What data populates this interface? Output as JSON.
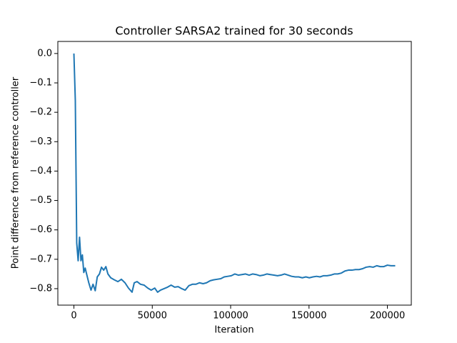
{
  "chart_data": {
    "type": "line",
    "title": "Controller SARSA2 trained for 30 seconds",
    "x_label": "Iteration",
    "y_label": "Point difference from reference controller",
    "color": "#1f77b4",
    "x": [
      0,
      900,
      1800,
      2700,
      3600,
      4500,
      5400,
      6300,
      7200,
      8100,
      9500,
      10900,
      12200,
      13600,
      14900,
      16300,
      17600,
      19000,
      20400,
      21700,
      23500,
      25800,
      28100,
      30300,
      32600,
      34800,
      37100,
      38500,
      40300,
      42500,
      44800,
      47100,
      49300,
      51600,
      53400,
      55200,
      57500,
      59700,
      62000,
      64300,
      66500,
      68800,
      71000,
      73300,
      75600,
      77800,
      80100,
      82400,
      84600,
      86900,
      89100,
      91400,
      93700,
      95900,
      98200,
      100400,
      102700,
      105000,
      107200,
      109500,
      111800,
      114000,
      116300,
      118600,
      120800,
      123100,
      125300,
      127600,
      129900,
      132100,
      134400,
      136700,
      138900,
      141200,
      143400,
      145700,
      148000,
      150200,
      152500,
      154800,
      157000,
      159300,
      161500,
      163800,
      166100,
      168300,
      170600,
      172900,
      175100,
      177400,
      179600,
      181900,
      184200,
      186400,
      188700,
      190900,
      193200,
      195500,
      197700,
      200000,
      202300,
      205000
    ],
    "values": [
      0,
      -0.16,
      -0.645,
      -0.705,
      -0.625,
      -0.705,
      -0.685,
      -0.745,
      -0.73,
      -0.75,
      -0.78,
      -0.805,
      -0.785,
      -0.807,
      -0.76,
      -0.75,
      -0.727,
      -0.737,
      -0.725,
      -0.75,
      -0.763,
      -0.77,
      -0.776,
      -0.768,
      -0.78,
      -0.798,
      -0.812,
      -0.78,
      -0.776,
      -0.785,
      -0.788,
      -0.798,
      -0.805,
      -0.798,
      -0.812,
      -0.805,
      -0.8,
      -0.795,
      -0.788,
      -0.795,
      -0.793,
      -0.8,
      -0.805,
      -0.79,
      -0.785,
      -0.785,
      -0.78,
      -0.783,
      -0.78,
      -0.773,
      -0.77,
      -0.768,
      -0.766,
      -0.76,
      -0.758,
      -0.756,
      -0.75,
      -0.754,
      -0.752,
      -0.75,
      -0.754,
      -0.75,
      -0.752,
      -0.756,
      -0.754,
      -0.75,
      -0.752,
      -0.754,
      -0.756,
      -0.754,
      -0.75,
      -0.754,
      -0.758,
      -0.76,
      -0.76,
      -0.763,
      -0.76,
      -0.763,
      -0.76,
      -0.758,
      -0.76,
      -0.756,
      -0.756,
      -0.754,
      -0.75,
      -0.75,
      -0.747,
      -0.74,
      -0.737,
      -0.737,
      -0.735,
      -0.735,
      -0.732,
      -0.727,
      -0.725,
      -0.727,
      -0.722,
      -0.725,
      -0.725,
      -0.72,
      -0.722,
      -0.722
    ],
    "xlim": [
      -10250,
      215250
    ],
    "ylim": [
      -0.856,
      0.041
    ],
    "xticks": [
      0,
      50000,
      100000,
      150000,
      200000
    ],
    "yticks": [
      {
        "value": 0,
        "label": "0.0"
      },
      {
        "value": -0.1,
        "label": "−0.1"
      },
      {
        "value": -0.2,
        "label": "−0.2"
      },
      {
        "value": -0.3,
        "label": "−0.3"
      },
      {
        "value": -0.4,
        "label": "−0.4"
      },
      {
        "value": -0.5,
        "label": "−0.5"
      },
      {
        "value": -0.6,
        "label": "−0.6"
      },
      {
        "value": -0.7,
        "label": "−0.7"
      },
      {
        "value": -0.8,
        "label": "−0.8"
      }
    ],
    "grid": false
  }
}
